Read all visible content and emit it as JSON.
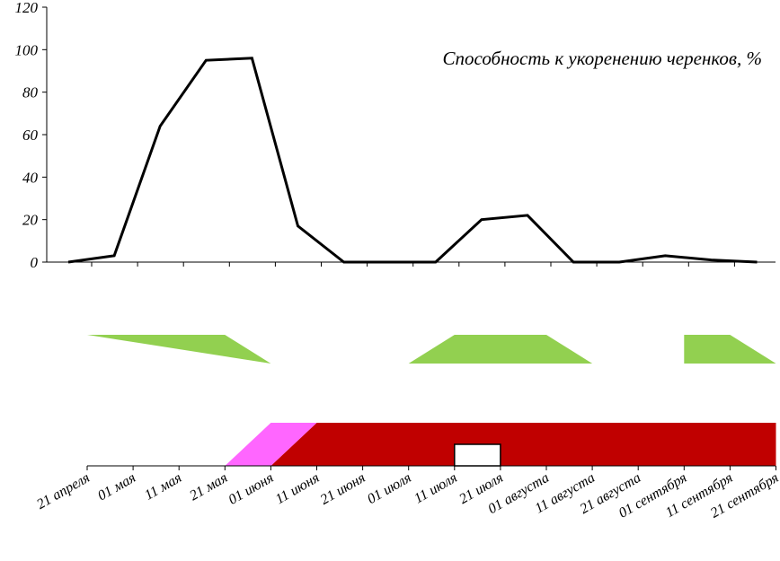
{
  "chart_data": {
    "type": "line",
    "title": "Способность к укоренению черенков, %",
    "xlabel": "",
    "ylabel": "",
    "ylim": [
      0,
      120
    ],
    "yticks": [
      0,
      20,
      40,
      60,
      80,
      100,
      120
    ],
    "grid": false,
    "categories": [
      "21 апреля",
      "01 мая",
      "11 мая",
      "21 мая",
      "01 июня",
      "11 июня",
      "21 июня",
      "01 июля",
      "11 июля",
      "21 июля",
      "01 августа",
      "11 августа",
      "21 августа",
      "01 сентября",
      "11 сентября",
      "21 сентября"
    ],
    "line_x": [
      0,
      1,
      2,
      3,
      4,
      5,
      6,
      7,
      8,
      9,
      10,
      11,
      12,
      13,
      14,
      15
    ],
    "line_y": [
      0,
      3,
      64,
      95,
      96,
      17,
      0,
      0,
      0,
      20,
      22,
      0,
      0,
      3,
      1,
      0
    ],
    "line_color": "#000000",
    "bands": [
      {
        "color": "#92d050",
        "regions": [
          [
            [
              0,
              1
            ],
            [
              3,
              1
            ],
            [
              4,
              0
            ]
          ],
          [
            [
              7,
              0
            ],
            [
              8,
              1
            ],
            [
              10,
              1
            ],
            [
              11,
              0
            ]
          ],
          [
            [
              13,
              0
            ],
            [
              13,
              1
            ],
            [
              14,
              1
            ],
            [
              15,
              0
            ]
          ]
        ]
      },
      {
        "color": "#c00000",
        "accent_color": "#ff66ff",
        "accent": [
          [
            3,
            0
          ],
          [
            4,
            1
          ],
          [
            5,
            1
          ],
          [
            4,
            0
          ]
        ],
        "regions": [
          [
            [
              4,
              0
            ],
            [
              5,
              1
            ],
            [
              15,
              1
            ],
            [
              15,
              0
            ]
          ]
        ],
        "gap": [
          [
            8,
            0
          ],
          [
            8,
            0.5
          ],
          [
            9,
            0.5
          ],
          [
            9,
            0
          ]
        ],
        "gap_color": "#ffffff"
      }
    ]
  }
}
